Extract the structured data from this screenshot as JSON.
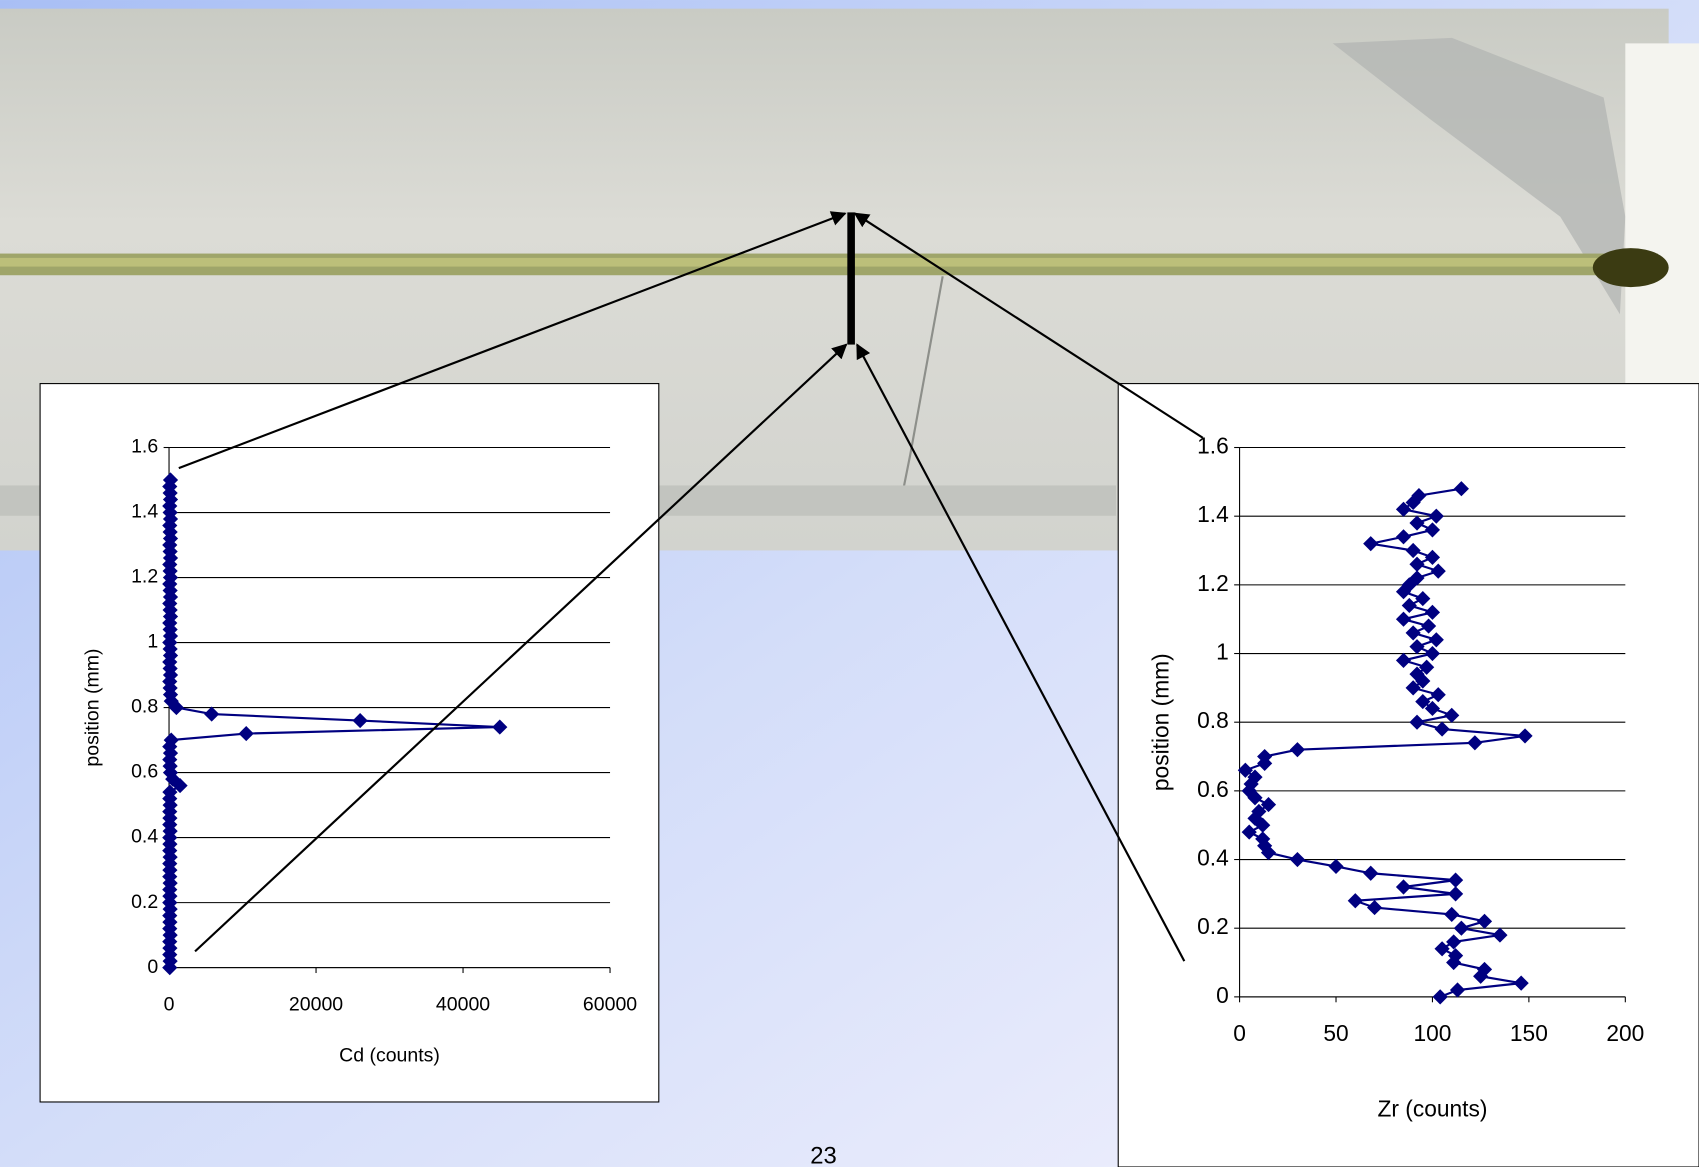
{
  "chart_data": [
    {
      "type": "scatter-line",
      "xlabel": "Cd (counts)",
      "ylabel": "position (mm)",
      "color": "#000080",
      "grid": true,
      "xlim": [
        0,
        60000
      ],
      "xticks": [
        0,
        20000,
        40000,
        60000
      ],
      "ylim": [
        0,
        1.6
      ],
      "yticks": [
        0,
        0.2,
        0.4,
        0.6,
        0.8,
        1,
        1.2,
        1.4,
        1.6
      ],
      "x": [
        100,
        150,
        100,
        120,
        100,
        150,
        100,
        120,
        100,
        150,
        100,
        120,
        100,
        150,
        100,
        120,
        100,
        150,
        100,
        120,
        100,
        150,
        100,
        120,
        100,
        150,
        100,
        120,
        1500,
        500,
        200,
        150,
        100,
        200,
        100,
        300,
        10500,
        45000,
        26000,
        5800,
        1000,
        300,
        200,
        150,
        100,
        200,
        150,
        100,
        200,
        150,
        100,
        200,
        150,
        100,
        200,
        150,
        100,
        200,
        150,
        100,
        200,
        150,
        100,
        200,
        150,
        100,
        200,
        150,
        100,
        200,
        150,
        100,
        200,
        150,
        100,
        200
      ],
      "values": [
        0,
        0.02,
        0.04,
        0.06,
        0.08,
        0.1,
        0.12,
        0.14,
        0.16,
        0.18,
        0.2,
        0.22,
        0.24,
        0.26,
        0.28,
        0.3,
        0.32,
        0.34,
        0.36,
        0.38,
        0.4,
        0.42,
        0.44,
        0.46,
        0.48,
        0.5,
        0.52,
        0.54,
        0.56,
        0.58,
        0.6,
        0.62,
        0.64,
        0.66,
        0.68,
        0.7,
        0.72,
        0.74,
        0.76,
        0.78,
        0.8,
        0.82,
        0.84,
        0.86,
        0.88,
        0.9,
        0.92,
        0.94,
        0.96,
        0.98,
        1,
        1.02,
        1.04,
        1.06,
        1.08,
        1.1,
        1.12,
        1.14,
        1.16,
        1.18,
        1.2,
        1.22,
        1.24,
        1.26,
        1.28,
        1.3,
        1.32,
        1.34,
        1.36,
        1.38,
        1.4,
        1.42,
        1.44,
        1.46,
        1.48,
        1.5
      ]
    },
    {
      "type": "scatter-line",
      "xlabel": "Zr (counts)",
      "ylabel": "position (mm)",
      "color": "#000080",
      "grid": true,
      "xlim": [
        0,
        200
      ],
      "xticks": [
        0,
        50,
        100,
        150,
        200
      ],
      "ylim": [
        0,
        1.6
      ],
      "yticks": [
        0,
        0.2,
        0.4,
        0.6,
        0.8,
        1,
        1.2,
        1.4,
        1.6
      ],
      "x": [
        104,
        113,
        146,
        125,
        127,
        111,
        112,
        105,
        111,
        135,
        115,
        127,
        110,
        70,
        60,
        112,
        85,
        112,
        68,
        50,
        30,
        15,
        13,
        12,
        5,
        12,
        8,
        10,
        15,
        8,
        5,
        6,
        8,
        3,
        13,
        13,
        30,
        122,
        148,
        105,
        92,
        110,
        100,
        95,
        103,
        90,
        95,
        92,
        97,
        85,
        100,
        92,
        102,
        90,
        98,
        85,
        100,
        88,
        95,
        85,
        88,
        92,
        103,
        92,
        100,
        90,
        68,
        85,
        100,
        92,
        102,
        85,
        90,
        93,
        115
      ],
      "values": [
        0,
        0.02,
        0.04,
        0.06,
        0.08,
        0.1,
        0.12,
        0.14,
        0.16,
        0.18,
        0.2,
        0.22,
        0.24,
        0.26,
        0.28,
        0.3,
        0.32,
        0.34,
        0.36,
        0.38,
        0.4,
        0.42,
        0.44,
        0.46,
        0.48,
        0.5,
        0.52,
        0.54,
        0.56,
        0.58,
        0.6,
        0.62,
        0.64,
        0.66,
        0.68,
        0.7,
        0.72,
        0.74,
        0.76,
        0.78,
        0.8,
        0.82,
        0.84,
        0.86,
        0.88,
        0.9,
        0.92,
        0.94,
        0.96,
        0.98,
        1,
        1.02,
        1.04,
        1.06,
        1.08,
        1.1,
        1.12,
        1.14,
        1.16,
        1.18,
        1.2,
        1.22,
        1.24,
        1.26,
        1.28,
        1.3,
        1.32,
        1.34,
        1.36,
        1.38,
        1.4,
        1.42,
        1.44,
        1.46,
        1.48
      ]
    }
  ],
  "slide": {
    "page_number": "23"
  }
}
